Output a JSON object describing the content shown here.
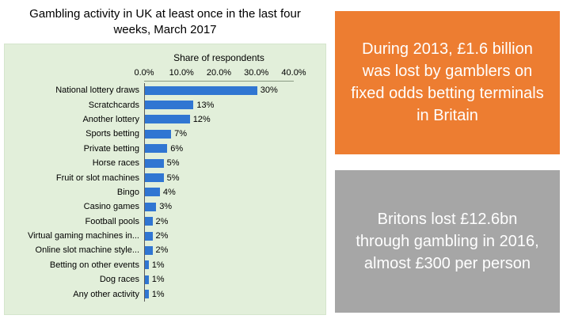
{
  "title": "Gambling activity in UK at least once in the last four weeks, March 2017",
  "chart_data": {
    "type": "bar",
    "orientation": "horizontal",
    "axis_title": "Share of respondents",
    "x_ticks": [
      "0.0%",
      "10.0%",
      "20.0%",
      "30.0%",
      "40.0%"
    ],
    "xlim": [
      0,
      40
    ],
    "categories": [
      "National lottery draws",
      "Scratchcards",
      "Another lottery",
      "Sports betting",
      "Private betting",
      "Horse races",
      "Fruit or slot machines",
      "Bingo",
      "Casino games",
      "Football pools",
      "Virtual gaming machines in...",
      "Online slot machine style...",
      "Betting on other events",
      "Dog races",
      "Any other activity"
    ],
    "values": [
      30,
      13,
      12,
      7,
      6,
      5,
      5,
      4,
      3,
      2,
      2,
      2,
      1,
      1,
      1
    ],
    "value_labels": [
      "30%",
      "13%",
      "12%",
      "7%",
      "6%",
      "5%",
      "5%",
      "4%",
      "3%",
      "2%",
      "2%",
      "2%",
      "1%",
      "1%",
      "1%"
    ],
    "bar_color": "#3076d2",
    "plot_bg": "#e2efda",
    "grid": false,
    "legend": "none"
  },
  "callouts": [
    {
      "text": "During 2013, £1.6 billion was lost by gamblers on fixed odds betting terminals in Britain",
      "bg": "#ed7d31"
    },
    {
      "text": "Britons lost £12.6bn through gambling in 2016, almost £300 per person",
      "bg": "#a6a6a6"
    }
  ]
}
